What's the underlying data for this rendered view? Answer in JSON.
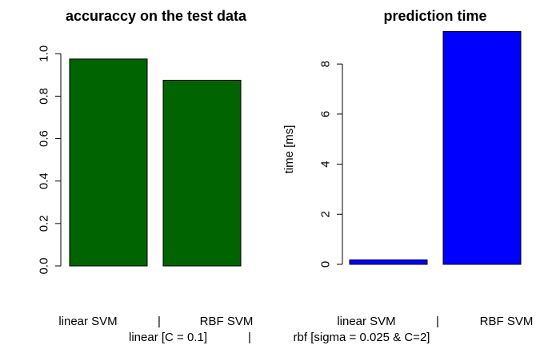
{
  "chart_data": [
    {
      "type": "bar",
      "title": "accuraccy on the test data",
      "xlabel": "",
      "ylabel": "",
      "categories": [
        "linear SVM",
        "RBF SVM"
      ],
      "values": [
        0.975,
        0.875
      ],
      "ylim": [
        0,
        1.08
      ],
      "yticks": [
        0.0,
        0.2,
        0.4,
        0.6,
        0.8,
        1.0
      ],
      "ytick_labels": [
        "0.0",
        "0.2",
        "0.4",
        "0.6",
        "0.8",
        "1.0"
      ],
      "bar_color": "#006400",
      "grid": false
    },
    {
      "type": "bar",
      "title": "prediction time",
      "xlabel": "",
      "ylabel": "time [ms]",
      "categories": [
        "linear SVM",
        "RBF SVM"
      ],
      "values": [
        0.18,
        9.3
      ],
      "ylim": [
        0,
        9.6
      ],
      "yticks": [
        0,
        2,
        4,
        6,
        8
      ],
      "ytick_labels": [
        "0",
        "2",
        "4",
        "6",
        "8"
      ],
      "bar_color": "#0000ff",
      "grid": false
    }
  ],
  "category_separator": "|",
  "footer": {
    "left_label": "linear [C = 0.1]",
    "separator": "|",
    "right_label": "rbf [sigma = 0.025 & C=2]"
  }
}
